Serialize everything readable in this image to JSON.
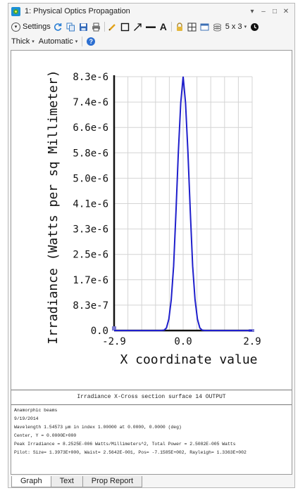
{
  "window": {
    "title": "1: Physical Optics Propagation",
    "controls": {
      "dropdown": "▾",
      "minimize": "–",
      "restore": "□",
      "close": "✕"
    }
  },
  "toolbar": {
    "settings_label": "Settings",
    "layout_label": "5 x 3",
    "layout_caret": "▾",
    "icons": [
      "refresh-icon",
      "copy-icon",
      "save-icon",
      "print-icon",
      "pencil-icon",
      "rectangle-icon",
      "arrow-icon",
      "line-icon",
      "text-icon",
      "lock-icon",
      "zoom-grid-icon",
      "window-icon",
      "layers-icon",
      "clock-icon"
    ],
    "text_tool_label": "A"
  },
  "toolbar2": {
    "line_width_label": "Thick",
    "scale_label": "Automatic",
    "caret": "▾",
    "help_label": "?"
  },
  "chart_data": {
    "type": "line",
    "xlabel": "X coordinate value",
    "ylabel": "Irradiance (Watts per sq Millimeter)",
    "x_ticks": [
      "-2.9",
      "0.0",
      "2.9"
    ],
    "y_ticks": [
      "0.0",
      "8.3e-7",
      "1.7e-6",
      "2.5e-6",
      "3.3e-6",
      "4.1e-6",
      "5.0e-6",
      "5.8e-6",
      "6.6e-6",
      "7.4e-6",
      "8.3e-6"
    ],
    "xlim": [
      -2.9,
      2.9
    ],
    "ylim": [
      0,
      8.2525e-06
    ],
    "grid": true,
    "series": [
      {
        "color": "#1f1fcc",
        "x": [
          -2.9,
          -1.2,
          -0.9,
          -0.8,
          -0.7,
          -0.6,
          -0.5,
          -0.4,
          -0.3,
          -0.2,
          -0.1,
          0.0,
          0.1,
          0.2,
          0.3,
          0.4,
          0.5,
          0.6,
          0.7,
          0.8,
          0.9,
          1.2,
          2.9
        ],
        "y": [
          0,
          0,
          0,
          1.3e-08,
          8.5e-08,
          3.7e-07,
          1e-06,
          2.1e-06,
          3.9e-06,
          5.8e-06,
          7.4e-06,
          8.2525e-06,
          7.4e-06,
          5.8e-06,
          3.9e-06,
          2.1e-06,
          1e-06,
          3.7e-07,
          8.5e-08,
          1.3e-08,
          0,
          0,
          0
        ]
      }
    ]
  },
  "caption": "Irradiance X-Cross section surface 14 OUTPUT",
  "info_lines": [
    "Anamorphic beams",
    "9/19/2014",
    "Wavelength 1.54573 µm in index 1.00000 at 0.0000, 0.0000 (deg)",
    "Center, Y = 0.0000E+000",
    "Peak Irradiance = 8.2525E-006 Watts/Millimeters^2, Total Power = 2.5082E-005 Watts",
    "Pilot: Size= 1.3973E+000, Waist= 2.5642E-001, Pos= -7.1585E+002, Rayleigh= 1.3363E+002"
  ],
  "tabs": [
    {
      "label": "Graph",
      "active": true
    },
    {
      "label": "Text",
      "active": false
    },
    {
      "label": "Prop Report",
      "active": false
    }
  ]
}
